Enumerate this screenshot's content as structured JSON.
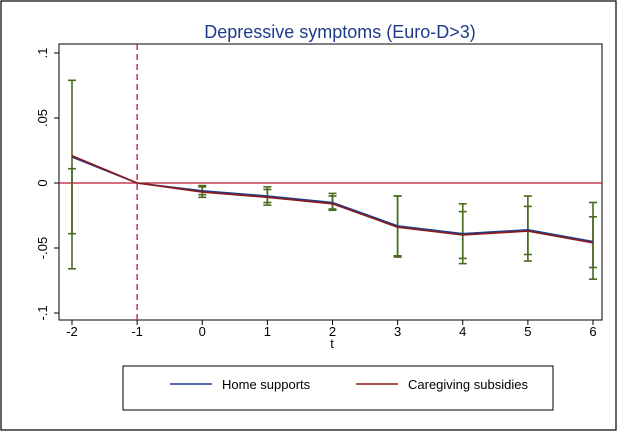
{
  "chart_data": {
    "type": "line",
    "title": "Depressive symptoms (Euro-D>3)",
    "xlabel": "t",
    "ylabel": "",
    "x": [
      -2,
      -1,
      0,
      1,
      2,
      3,
      4,
      5,
      6
    ],
    "x_tick_labels": [
      "-2",
      "-1",
      "0",
      "1",
      "2",
      "3",
      "4",
      "5",
      "6"
    ],
    "y_ticks": [
      0.1,
      0.05,
      0,
      -0.05,
      -0.1
    ],
    "y_tick_labels": [
      ".1",
      ".05",
      "0",
      "-.05",
      "-.1"
    ],
    "xlim": [
      -2.1,
      6.1
    ],
    "ylim": [
      -0.1,
      0.1
    ],
    "reference_lines": {
      "x": -1,
      "y": 0
    },
    "series": [
      {
        "name": "Home supports",
        "color": "#1f3c88",
        "values": [
          0.02,
          0.0,
          -0.006,
          -0.01,
          -0.015,
          -0.033,
          -0.039,
          -0.036,
          -0.045
        ],
        "ci_low": [
          -0.039,
          0.0,
          -0.009,
          -0.015,
          -0.02,
          -0.056,
          -0.058,
          -0.055,
          -0.065
        ],
        "ci_high": [
          0.079,
          0.0,
          -0.003,
          -0.005,
          -0.01,
          -0.01,
          -0.022,
          -0.018,
          -0.026
        ]
      },
      {
        "name": "Caregiving subsidies",
        "color": "#8b1a1a",
        "values": [
          0.021,
          0.0,
          -0.007,
          -0.011,
          -0.016,
          -0.034,
          -0.04,
          -0.037,
          -0.046
        ],
        "ci_low": [
          -0.066,
          0.0,
          -0.011,
          -0.017,
          -0.021,
          -0.057,
          -0.062,
          -0.06,
          -0.074
        ],
        "ci_high": [
          0.011,
          0.0,
          -0.002,
          -0.003,
          -0.008,
          -0.01,
          -0.016,
          -0.01,
          -0.015
        ]
      }
    ],
    "colors": {
      "errorbar": "#4a6b1f",
      "reference_line": "#c0142f",
      "plot_background": "#ffffff",
      "frame": "#000000"
    },
    "legend": {
      "placement": "bottom",
      "entries": [
        "Home supports",
        "Caregiving subsidies"
      ]
    },
    "grid": false
  }
}
